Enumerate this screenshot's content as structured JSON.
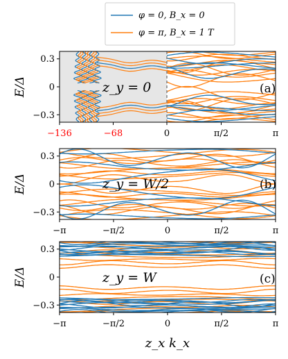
{
  "legend": {
    "entries": [
      {
        "label": "φ = 0, B_x = 0",
        "color": "#1f77b4"
      },
      {
        "label": "φ = π, B_x = 1 T",
        "color": "#ff7f0e"
      }
    ]
  },
  "colors": {
    "blue": "#1f77b4",
    "orange": "#ff7f0e",
    "negative_tick": "#ff0000",
    "shade": "#e6e6e6"
  },
  "chart_data": [
    {
      "type": "line",
      "panel": "(a)",
      "annotation": "z_y = 0",
      "ylabel": "E/Δ",
      "yticks": [
        "0.3",
        "0",
        "−0.3"
      ],
      "ylim": [
        -0.38,
        0.38
      ],
      "xlim": [
        -136,
        3.14159
      ],
      "xticks": [
        {
          "label": "−136",
          "value": -136,
          "color": "#ff0000"
        },
        {
          "label": "−68",
          "value": -68,
          "color": "#ff0000"
        },
        {
          "label": "0",
          "value": 0,
          "color": "#000000"
        },
        {
          "label": "π/2",
          "value": 1.5708,
          "color": "#000000"
        },
        {
          "label": "π",
          "value": 3.14159,
          "color": "#000000"
        }
      ],
      "shaded_region": [
        -136,
        0
      ],
      "axis_break": "left part (−136…0) is on a compressed scale, right part (0…π) is on a linear k scale"
    },
    {
      "type": "line",
      "panel": "(b)",
      "annotation": "z_y = W/2",
      "ylabel": "E/Δ",
      "yticks": [
        "0.3",
        "0",
        "−0.3"
      ],
      "ylim": [
        -0.38,
        0.38
      ],
      "xlim": [
        -3.14159,
        3.14159
      ],
      "xticks": [
        "−π",
        "−π/2",
        "0",
        "π/2",
        "π"
      ],
      "series": [
        {
          "name": "φ = 0, B_x = 0",
          "band_edge_min": 0.1,
          "band_edge_max": 0.35
        },
        {
          "name": "φ = π, B_x = 1 T",
          "band_edge_min": 0.05,
          "band_edge_max": 0.35
        }
      ]
    },
    {
      "type": "line",
      "panel": "(c)",
      "annotation": "z_y = W",
      "ylabel": "E/Δ",
      "yticks": [
        "0.3",
        "0",
        "−0.3"
      ],
      "ylim": [
        -0.38,
        0.38
      ],
      "xlim": [
        -3.14159,
        3.14159
      ],
      "xticks": [
        "−π",
        "−π/2",
        "0",
        "π/2",
        "π"
      ],
      "xlabel": "z_x k_x",
      "series": [
        {
          "name": "φ = 0, B_x = 0",
          "band_edge_min": 0.24,
          "band_edge_max": 0.38
        },
        {
          "name": "φ = π, B_x = 1 T",
          "band_edge_min": 0.12,
          "band_edge_max": 0.38
        }
      ]
    }
  ]
}
